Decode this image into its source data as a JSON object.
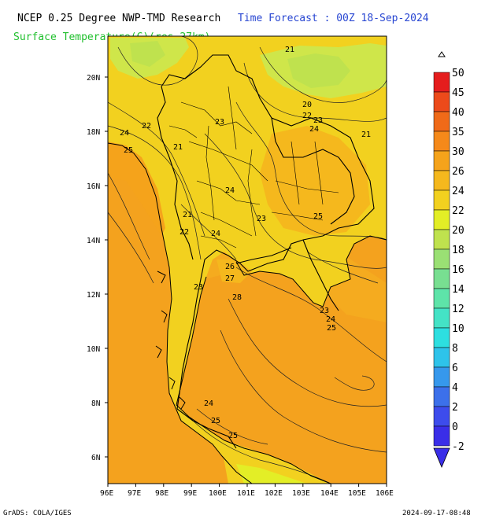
{
  "header": {
    "title_left": "NCEP 0.25 Degree NWP-TMD Research",
    "title_right": "Time Forecast : 00Z 18-Sep-2024",
    "subtitle": "Surface Temperature(C)(res.27km)"
  },
  "footer": {
    "left": "GrADS: COLA/IGES",
    "right": "2024-09-17-08:48"
  },
  "map": {
    "lon_labels": [
      "96E",
      "97E",
      "98E",
      "99E",
      "100E",
      "101E",
      "102E",
      "103E",
      "104E",
      "105E",
      "106E"
    ],
    "lat_labels": [
      "6N",
      "8N",
      "10N",
      "12N",
      "14N",
      "16N",
      "18N",
      "20N"
    ],
    "contour_labels": [
      "21",
      "20",
      "22",
      "23",
      "24",
      "21",
      "24",
      "22",
      "25",
      "21",
      "23",
      "24",
      "21",
      "25",
      "23",
      "22",
      "24",
      "26",
      "27",
      "23",
      "28",
      "23",
      "24",
      "25",
      "24",
      "25",
      "25"
    ]
  },
  "colorbar": {
    "labels": [
      "50",
      "45",
      "40",
      "35",
      "30",
      "26",
      "24",
      "22",
      "20",
      "18",
      "16",
      "14",
      "12",
      "10",
      "8",
      "6",
      "4",
      "2",
      "0",
      "-2"
    ],
    "colors": [
      "#e51d1d",
      "#ec4a1a",
      "#f06a18",
      "#f5891a",
      "#f5a31b",
      "#f5b81d",
      "#f2d11f",
      "#e3ee26",
      "#bfe24e",
      "#9ae074",
      "#78df91",
      "#5ee4a9",
      "#44e3c6",
      "#2ddfe0",
      "#2ec3ea",
      "#3698ec",
      "#3c70ea",
      "#3d4cec",
      "#3a2ee8"
    ],
    "colors_legend": {
      "sea_orange": "#f4a21e",
      "land_yellow": "#f2d11f",
      "land_light": "#cfe64a"
    }
  }
}
